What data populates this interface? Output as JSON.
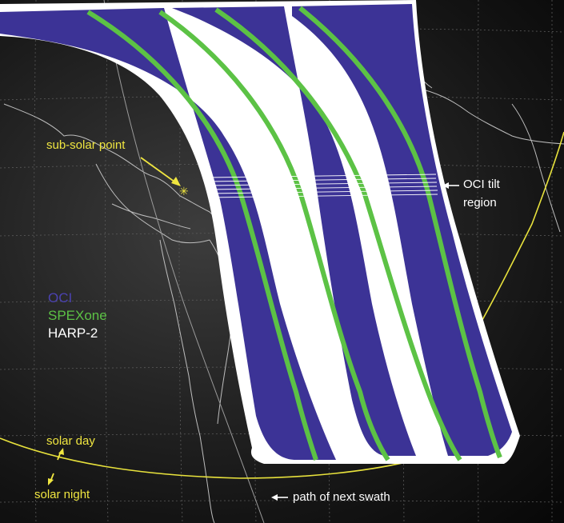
{
  "legend": {
    "oci": {
      "label": "OCI",
      "color": "#3c3396"
    },
    "spexone": {
      "label": "SPEXone",
      "color": "#5cc245"
    },
    "harp2": {
      "label": "HARP-2",
      "color": "#ffffff"
    }
  },
  "annotations": {
    "sub_solar_point": "sub-solar point",
    "oci_tilt_line1": "OCI tilt",
    "oci_tilt_line2": "region",
    "solar_day": "solar day",
    "solar_night": "solar night",
    "next_swath": "path of next swath"
  },
  "colors": {
    "terminator": "#e8e23c",
    "annotation_text": "#f0e640",
    "coastline": "#bdbdbd",
    "graticule": "#5a5a5a",
    "sun_marker": "#f0e640"
  },
  "icons": {
    "sun": "asterisk-icon",
    "arrow": "left-arrow-icon"
  }
}
